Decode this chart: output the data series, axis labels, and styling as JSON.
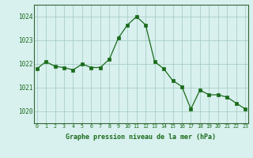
{
  "x": [
    0,
    1,
    2,
    3,
    4,
    5,
    6,
    7,
    8,
    9,
    10,
    11,
    12,
    13,
    14,
    15,
    16,
    17,
    18,
    19,
    20,
    21,
    22,
    23
  ],
  "y": [
    1021.8,
    1022.1,
    1021.9,
    1021.85,
    1021.75,
    1022.0,
    1021.85,
    1021.85,
    1022.2,
    1023.1,
    1023.65,
    1024.0,
    1023.65,
    1022.1,
    1021.8,
    1021.3,
    1021.05,
    1020.1,
    1020.9,
    1020.7,
    1020.7,
    1020.6,
    1020.35,
    1020.1
  ],
  "line_color": "#1a6b1a",
  "marker_color": "#1a6b1a",
  "bg_color": "#d8f0ee",
  "grid_color": "#a0c8c0",
  "axis_color": "#336633",
  "text_color": "#1a6b1a",
  "xlabel": "Graphe pression niveau de la mer (hPa)",
  "ylim": [
    1019.5,
    1024.5
  ],
  "yticks": [
    1020,
    1021,
    1022,
    1023,
    1024
  ],
  "xticks": [
    0,
    1,
    2,
    3,
    4,
    5,
    6,
    7,
    8,
    9,
    10,
    11,
    12,
    13,
    14,
    15,
    16,
    17,
    18,
    19,
    20,
    21,
    22,
    23
  ],
  "xlim": [
    -0.3,
    23.3
  ]
}
